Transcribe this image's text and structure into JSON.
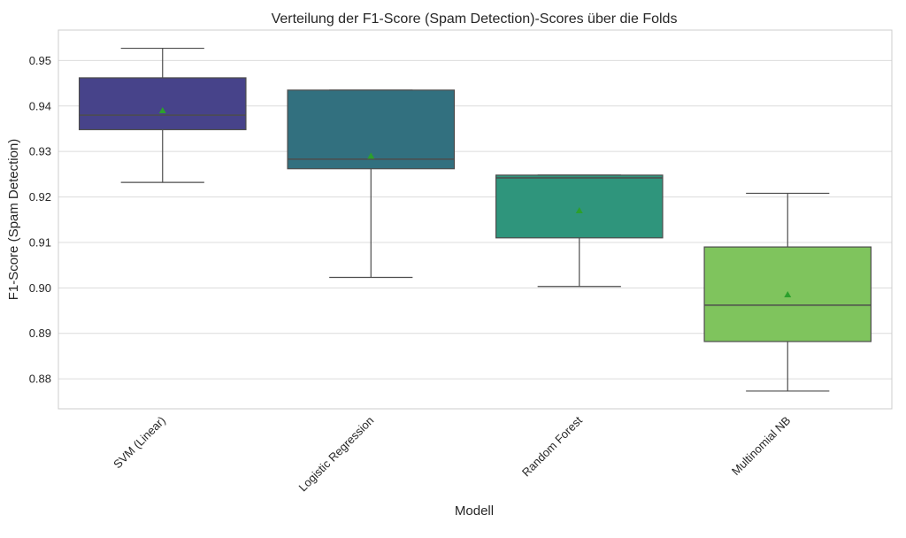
{
  "chart_data": {
    "type": "box",
    "title": "Verteilung der F1-Score (Spam Detection)-Scores über die Folds",
    "xlabel": "Modell",
    "ylabel": "F1-Score (Spam Detection)",
    "ylim": [
      0.8734,
      0.9567
    ],
    "yticks": [
      0.88,
      0.89,
      0.9,
      0.91,
      0.92,
      0.93,
      0.94,
      0.95
    ],
    "ytick_labels": [
      "0.88",
      "0.89",
      "0.90",
      "0.91",
      "0.92",
      "0.93",
      "0.94",
      "0.95"
    ],
    "grid": true,
    "mean_markers": true,
    "categories": [
      "SVM (Linear)",
      "Logistic Regression",
      "Random Forest",
      "Multinomial NB"
    ],
    "boxes": [
      {
        "category": "SVM (Linear)",
        "whisker_low": 0.9232,
        "q1": 0.9348,
        "median": 0.938,
        "q3": 0.9462,
        "whisker_high": 0.9527,
        "mean": 0.939,
        "color": "#47438a"
      },
      {
        "category": "Logistic Regression",
        "whisker_low": 0.9023,
        "q1": 0.9262,
        "median": 0.9283,
        "q3": 0.9435,
        "whisker_high": 0.9435,
        "mean": 0.929,
        "color": "#32707f"
      },
      {
        "category": "Random Forest",
        "whisker_low": 0.9003,
        "q1": 0.911,
        "median": 0.9242,
        "q3": 0.9248,
        "whisker_high": 0.9248,
        "mean": 0.917,
        "color": "#2f957c"
      },
      {
        "category": "Multinomial NB",
        "whisker_low": 0.8773,
        "q1": 0.8882,
        "median": 0.8962,
        "q3": 0.909,
        "whisker_high": 0.9208,
        "mean": 0.8985,
        "color": "#7fc45d"
      }
    ],
    "colors": {
      "grid": "#dcdcdc",
      "frame": "#cccccc",
      "line": "#4d4d4d",
      "mean_marker": "#2ca02c"
    }
  }
}
